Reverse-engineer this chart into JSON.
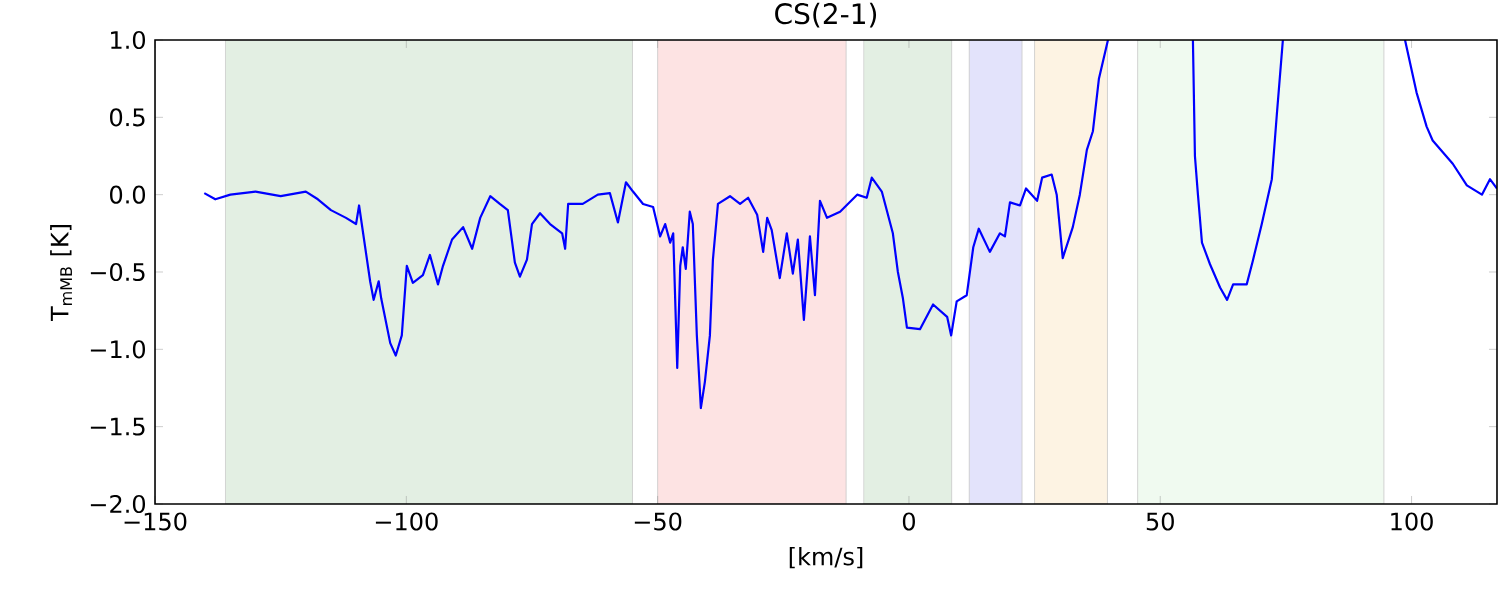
{
  "chart_data": {
    "type": "line",
    "title": "CS(2-1)",
    "xlabel": "[km/s]",
    "ylabel": "T$_{mMB}$ [K]",
    "xlim": [
      -150,
      117
    ],
    "ylim": [
      -2.0,
      1.0
    ],
    "xticks": [
      {
        "value": -150,
        "label": "−150"
      },
      {
        "value": -100,
        "label": "−100"
      },
      {
        "value": -50,
        "label": "−50"
      },
      0,
      50,
      100
    ],
    "yticks": [
      {
        "value": -2.0,
        "label": "−2.0"
      },
      {
        "value": -1.5,
        "label": "−1.5"
      },
      {
        "value": -1.0,
        "label": "−1.0"
      },
      {
        "value": -0.5,
        "label": "−0.5"
      },
      {
        "value": 0.0,
        "label": "0.0"
      },
      {
        "value": 0.5,
        "label": "0.5"
      },
      {
        "value": 1.0,
        "label": "1.0"
      }
    ],
    "grid": false,
    "marker": "none",
    "line_style": "solid",
    "bands": [
      {
        "axis": "x",
        "from": -136,
        "to": -55,
        "color": "#e3efe3"
      },
      {
        "axis": "x",
        "from": -50,
        "to": -12.5,
        "color": "#fde3e3"
      },
      {
        "axis": "x",
        "from": -9,
        "to": 8.5,
        "color": "#e3efe3"
      },
      {
        "axis": "x",
        "from": 12,
        "to": 22.5,
        "color": "#e3e3fb"
      },
      {
        "axis": "x",
        "from": 25,
        "to": 39.5,
        "color": "#fdf3e3"
      },
      {
        "axis": "x",
        "from": 45.5,
        "to": 94.5,
        "color": "#f0faf0"
      }
    ],
    "series": [
      {
        "color": "#0000ff",
        "x": [
          -140.2,
          -138,
          -135,
          -130,
          -125,
          -120,
          -117.6,
          -115,
          -112,
          -110,
          -109.4,
          -107.2,
          -106.5,
          -105.5,
          -105,
          -103.2,
          -102.1,
          -100.9,
          -99.9,
          -98.7,
          -96.7,
          -95.3,
          -93.7,
          -92.7,
          -90.9,
          -88.7,
          -86.9,
          -85.3,
          -83.3,
          -81.4,
          -79.8,
          -78.4,
          -77.4,
          -76,
          -75,
          -73.4,
          -71.4,
          -69,
          -68.4,
          -67.8,
          -64.9,
          -61.9,
          -59.5,
          -57.9,
          -56.3,
          -54.9,
          -52.9,
          -50.9,
          -49.5,
          -48.5,
          -47.5,
          -46.9,
          -46.1,
          -45.5,
          -45,
          -44.4,
          -43.6,
          -43,
          -42.2,
          -41.4,
          -40.6,
          -39.6,
          -39,
          -38,
          -35.6,
          -33.6,
          -32,
          -30.2,
          -29,
          -28.2,
          -27.3,
          -25.7,
          -24.3,
          -23.1,
          -22.1,
          -20.9,
          -19.7,
          -18.7,
          -17.7,
          -16.3,
          -13.7,
          -10.3,
          -8.4,
          -7.4,
          -5.4,
          -3.2,
          -2.2,
          -1.2,
          -0.4,
          2.2,
          4.8,
          7.6,
          8.4,
          9.5,
          11.5,
          12.8,
          13.9,
          16.1,
          18.1,
          19.1,
          20.1,
          22.1,
          23.3,
          25.5,
          26.5,
          28.4,
          29.4,
          30.6,
          32.6,
          34,
          35.4,
          36.6,
          37.8,
          39.6,
          48,
          56.5,
          56.9,
          57.5,
          58.3,
          59.9,
          61.9,
          63.3,
          64.5,
          67.2,
          68.4,
          70.2,
          72.2,
          73.2,
          74.4,
          86,
          98.7,
          101,
          103,
          104.2,
          108.2,
          111,
          114,
          115.6,
          117
        ],
        "values": [
          0.01,
          -0.03,
          0.0,
          0.02,
          -0.01,
          0.02,
          -0.03,
          -0.1,
          -0.15,
          -0.19,
          -0.07,
          -0.56,
          -0.68,
          -0.56,
          -0.67,
          -0.96,
          -1.04,
          -0.91,
          -0.46,
          -0.57,
          -0.52,
          -0.39,
          -0.58,
          -0.46,
          -0.29,
          -0.21,
          -0.35,
          -0.15,
          -0.01,
          -0.06,
          -0.1,
          -0.44,
          -0.53,
          -0.42,
          -0.19,
          -0.12,
          -0.19,
          -0.25,
          -0.35,
          -0.06,
          -0.06,
          0.0,
          0.01,
          -0.18,
          0.08,
          0.02,
          -0.06,
          -0.08,
          -0.27,
          -0.19,
          -0.31,
          -0.25,
          -1.12,
          -0.46,
          -0.34,
          -0.48,
          -0.11,
          -0.19,
          -0.91,
          -1.38,
          -1.21,
          -0.91,
          -0.42,
          -0.06,
          -0.01,
          -0.06,
          -0.02,
          -0.13,
          -0.37,
          -0.15,
          -0.23,
          -0.54,
          -0.25,
          -0.51,
          -0.29,
          -0.81,
          -0.27,
          -0.65,
          -0.04,
          -0.15,
          -0.11,
          0.0,
          -0.02,
          0.11,
          0.02,
          -0.25,
          -0.5,
          -0.67,
          -0.86,
          -0.87,
          -0.71,
          -0.79,
          -0.91,
          -0.69,
          -0.65,
          -0.34,
          -0.22,
          -0.37,
          -0.25,
          -0.27,
          -0.05,
          -0.07,
          0.04,
          -0.04,
          0.11,
          0.13,
          0.0,
          -0.41,
          -0.21,
          0.0,
          0.29,
          0.41,
          0.75,
          1.0,
          null,
          1.0,
          0.25,
          0.0,
          -0.31,
          -0.45,
          -0.6,
          -0.68,
          -0.58,
          -0.58,
          -0.43,
          -0.19,
          0.1,
          0.52,
          1.0,
          null,
          1.0,
          0.66,
          0.44,
          0.35,
          0.2,
          0.06,
          0.0,
          0.1,
          0.04
        ]
      }
    ]
  }
}
